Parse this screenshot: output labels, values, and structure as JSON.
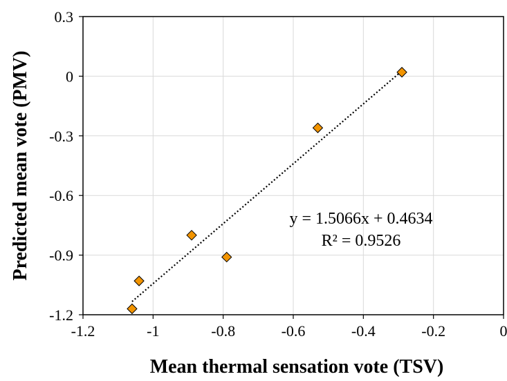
{
  "chart_data": {
    "type": "scatter",
    "xlabel": "Mean thermal sensation vote (TSV)",
    "ylabel": "Predicted mean vote (PMV)",
    "xlim": [
      -1.2,
      0
    ],
    "ylim": [
      -1.2,
      0.3
    ],
    "xticks": [
      -1.2,
      -1,
      -0.8,
      -0.6,
      -0.4,
      -0.2,
      0
    ],
    "xtick_labels": [
      "-1.2",
      "-1",
      "-0.8",
      "-0.6",
      "-0.4",
      "-0.2",
      "0"
    ],
    "yticks": [
      -1.2,
      -0.9,
      -0.6,
      -0.3,
      0,
      0.3
    ],
    "ytick_labels": [
      "-1.2",
      "-0.9",
      "-0.6",
      "-0.3",
      "0",
      "0.3"
    ],
    "grid": true,
    "marker": "diamond",
    "marker_color": "#f29400",
    "marker_edge_color": "#000000",
    "trendline_color": "#000000",
    "points": [
      {
        "x": -1.06,
        "y": -1.17
      },
      {
        "x": -1.04,
        "y": -1.03
      },
      {
        "x": -0.89,
        "y": -0.8
      },
      {
        "x": -0.79,
        "y": -0.91
      },
      {
        "x": -0.53,
        "y": -0.26
      },
      {
        "x": -0.29,
        "y": 0.02
      }
    ],
    "trendline": {
      "type": "linear",
      "style": "dotted",
      "slope": 1.5066,
      "intercept": 0.4634,
      "x_range": [
        -1.06,
        -0.29
      ],
      "equation": "y = 1.5066x + 0.4634",
      "r_squared": "R² = 0.9526"
    }
  }
}
